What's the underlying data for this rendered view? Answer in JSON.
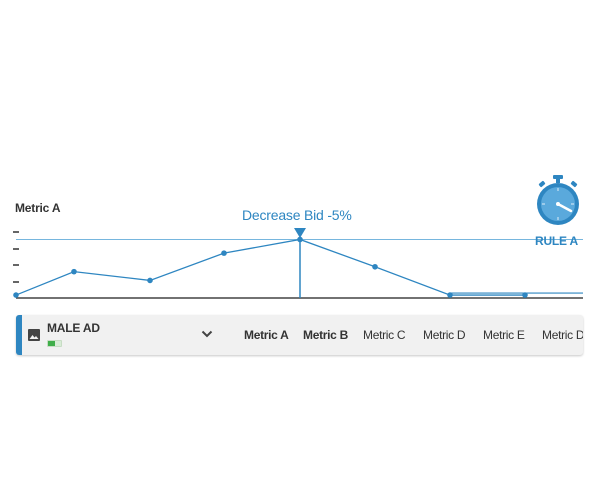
{
  "chart": {
    "y_axis_label": "Metric A",
    "action_label": "Decrease Bid -5%",
    "rule_label": "RULE A",
    "colors": {
      "line": "#2e86c1",
      "axis": "#444444",
      "threshold": "#76b6de"
    }
  },
  "chart_data": {
    "type": "line",
    "title": "",
    "ylabel": "Metric A",
    "xlabel": "",
    "x": [
      0,
      1,
      2,
      3,
      4,
      5,
      6,
      7
    ],
    "ylim": [
      0,
      4
    ],
    "series": [
      {
        "values": [
          0.1,
          1.3,
          0.85,
          2.25,
          2.95,
          1.55,
          0.1,
          0.1
        ]
      }
    ],
    "threshold": {
      "label": "RULE A",
      "value": 2.95
    },
    "event": {
      "label": "Decrease Bid -5%",
      "x_index": 4
    }
  },
  "ad_card": {
    "name": "MALE AD",
    "status": "active",
    "status_color": "#3fae49",
    "status_level": 0.55,
    "expand_icon": "chevron-down-icon",
    "image_icon": "image-icon",
    "metrics": [
      {
        "label": "Metric A",
        "bold": true
      },
      {
        "label": "Metric B",
        "bold": true
      },
      {
        "label": "Metric C",
        "bold": false
      },
      {
        "label": "Metric D",
        "bold": false
      },
      {
        "label": "Metric E",
        "bold": false
      },
      {
        "label": "Metric D",
        "bold": false
      }
    ]
  },
  "icons": {
    "timer": "stopwatch-icon"
  }
}
